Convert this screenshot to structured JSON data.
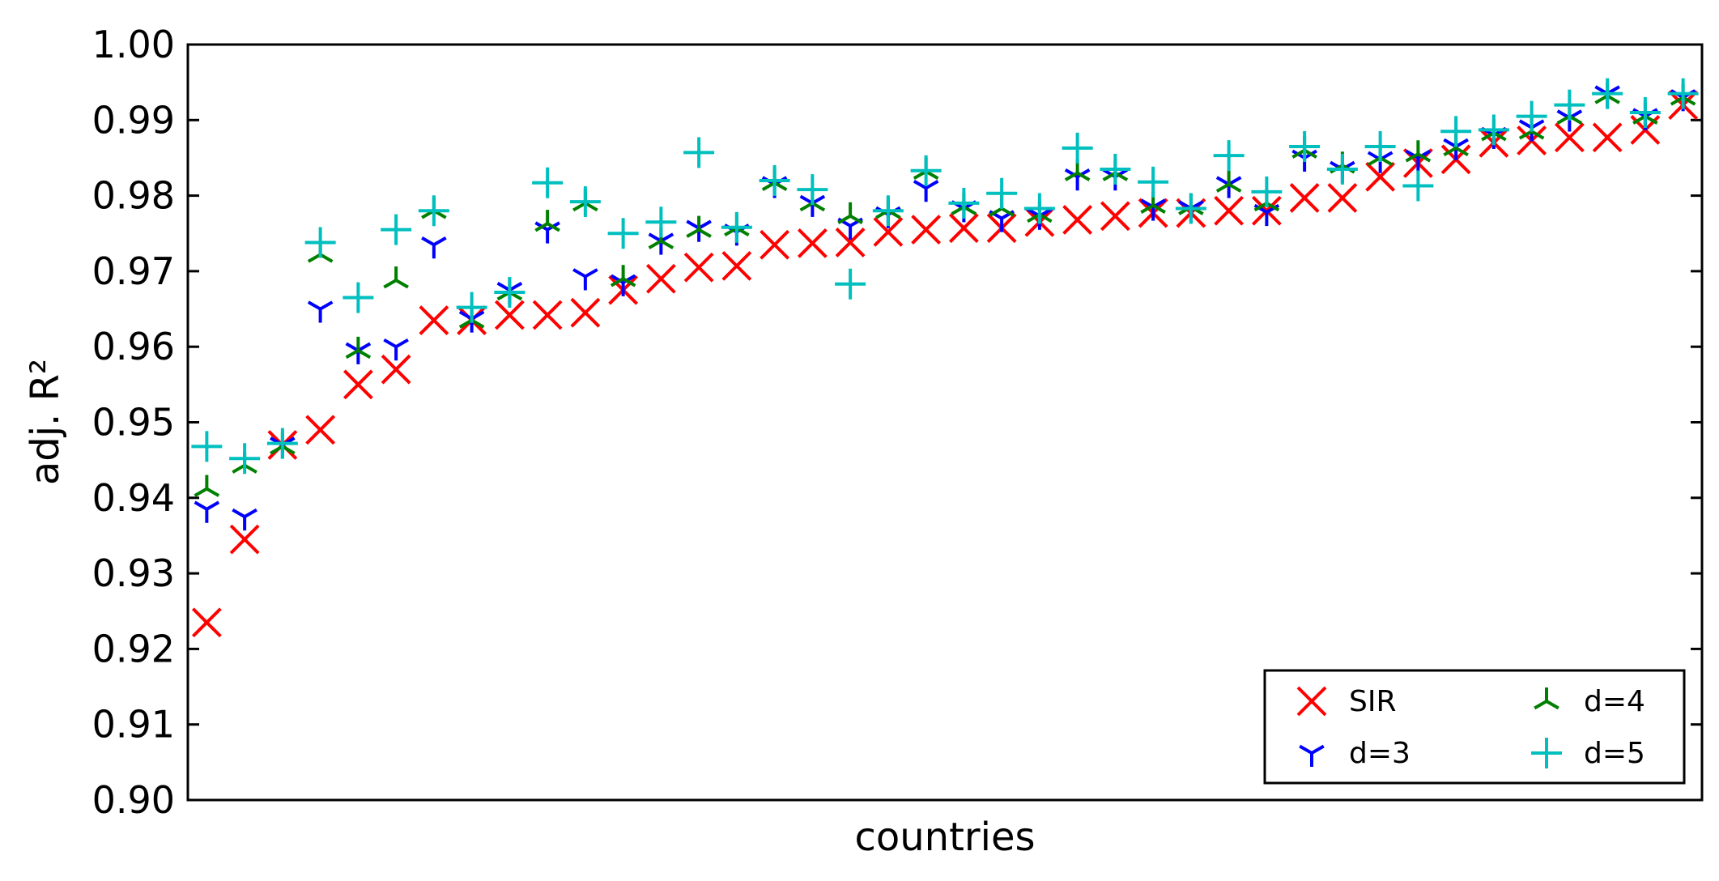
{
  "chart_data": {
    "type": "scatter",
    "xlabel": "countries",
    "ylabel": "adj. R²",
    "ylim": [
      0.9,
      1.0
    ],
    "yticks": [
      "0.90",
      "0.91",
      "0.92",
      "0.93",
      "0.94",
      "0.95",
      "0.96",
      "0.97",
      "0.98",
      "0.99",
      "1.00"
    ],
    "x": [
      1,
      2,
      3,
      4,
      5,
      6,
      7,
      8,
      9,
      10,
      11,
      12,
      13,
      14,
      15,
      16,
      17,
      18,
      19,
      20,
      21,
      22,
      23,
      24,
      25,
      26,
      27,
      28,
      29,
      30,
      31,
      32,
      33,
      34,
      35,
      36,
      37,
      38,
      39,
      40
    ],
    "legend_placement": "lower-right",
    "legend_columns": 2,
    "series": [
      {
        "name": "SIR",
        "marker": "x",
        "color": "#ff0000",
        "values": [
          0.9235,
          0.9345,
          0.947,
          0.949,
          0.955,
          0.957,
          0.9635,
          0.9635,
          0.9642,
          0.9642,
          0.9645,
          0.9675,
          0.969,
          0.9705,
          0.9707,
          0.9735,
          0.9737,
          0.9738,
          0.9752,
          0.9755,
          0.9757,
          0.9757,
          0.9765,
          0.9768,
          0.9773,
          0.9777,
          0.9777,
          0.978,
          0.978,
          0.9797,
          0.9797,
          0.9825,
          0.9843,
          0.9848,
          0.987,
          0.9873,
          0.9877,
          0.9877,
          0.9887,
          0.992
        ]
      },
      {
        "name": "d=3",
        "marker": "tri_down",
        "color": "#0000ff",
        "values": [
          0.9385,
          0.9375,
          0.947,
          0.965,
          0.9595,
          0.96,
          0.9735,
          0.9637,
          0.9675,
          0.9755,
          0.9693,
          0.9685,
          0.974,
          0.9757,
          0.9752,
          0.9815,
          0.979,
          0.976,
          0.9775,
          0.981,
          0.9783,
          0.977,
          0.9773,
          0.9825,
          0.9825,
          0.9785,
          0.9783,
          0.9815,
          0.9778,
          0.985,
          0.9835,
          0.9848,
          0.985,
          0.9865,
          0.988,
          0.989,
          0.9903,
          0.9935,
          0.9905,
          0.993
        ]
      },
      {
        "name": "d=4",
        "marker": "tri_up",
        "color": "#008000",
        "values": [
          0.9412,
          0.9443,
          0.9468,
          0.9722,
          0.9595,
          0.9688,
          0.978,
          0.9635,
          0.9672,
          0.9763,
          0.979,
          0.969,
          0.974,
          0.9755,
          0.9757,
          0.9817,
          0.979,
          0.9773,
          0.978,
          0.9832,
          0.9785,
          0.9783,
          0.9775,
          0.983,
          0.983,
          0.9787,
          0.9785,
          0.9815,
          0.979,
          0.986,
          0.984,
          0.985,
          0.9855,
          0.9863,
          0.9883,
          0.9885,
          0.9905,
          0.9932,
          0.9905,
          0.993
        ]
      },
      {
        "name": "d=5",
        "marker": "plus",
        "color": "#00bfbf",
        "values": [
          0.9468,
          0.9452,
          0.9472,
          0.9738,
          0.9665,
          0.9755,
          0.978,
          0.9652,
          0.9672,
          0.9817,
          0.9792,
          0.975,
          0.9765,
          0.9857,
          0.9758,
          0.982,
          0.9808,
          0.9683,
          0.978,
          0.9833,
          0.979,
          0.9803,
          0.9783,
          0.9863,
          0.9835,
          0.9818,
          0.9783,
          0.9853,
          0.9805,
          0.9865,
          0.9835,
          0.9865,
          0.9813,
          0.9885,
          0.9887,
          0.9905,
          0.992,
          0.9935,
          0.991,
          0.9935
        ]
      }
    ]
  }
}
